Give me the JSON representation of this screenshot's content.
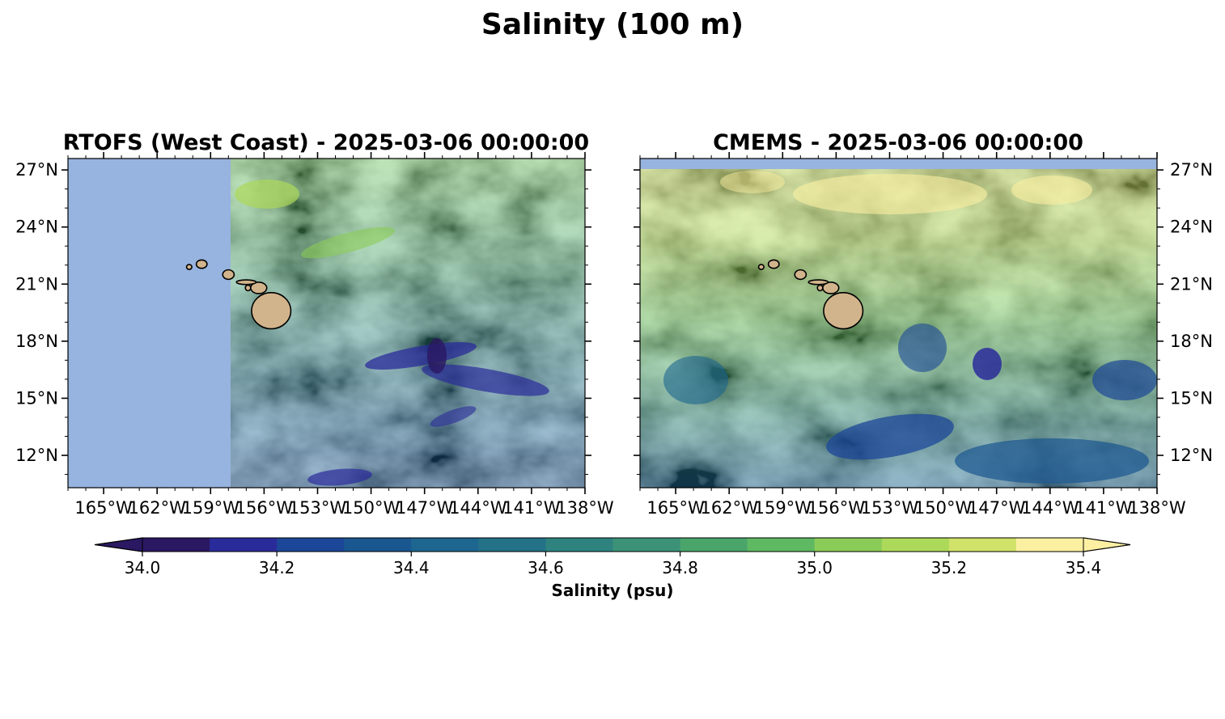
{
  "figure": {
    "title": "Salinity (100 m)"
  },
  "chart_data": [
    {
      "type": "heatmap",
      "title": "RTOFS (West Coast) - 2025-03-06 00:00:00",
      "x_ticks": [
        "165°W",
        "162°W",
        "159°W",
        "156°W",
        "153°W",
        "150°W",
        "147°W",
        "144°W",
        "141°W",
        "138°W"
      ],
      "y_ticks": [
        "27°N",
        "24°N",
        "21°N",
        "18°N",
        "15°N",
        "12°N"
      ],
      "y_tick_side": "left",
      "x_range": [
        -167,
        -138
      ],
      "y_range": [
        10.3,
        27.6
      ],
      "no_data_region_lon": [
        -167,
        -157.9
      ],
      "dominant_range_psu": [
        34.0,
        35.3
      ],
      "colors": {
        "no_data": "#97b3df",
        "land": "#d2b48c"
      }
    },
    {
      "type": "heatmap",
      "title": "CMEMS - 2025-03-06 00:00:00",
      "x_ticks": [
        "165°W",
        "162°W",
        "159°W",
        "156°W",
        "153°W",
        "150°W",
        "147°W",
        "144°W",
        "141°W",
        "138°W"
      ],
      "y_ticks": [
        "27°N",
        "24°N",
        "21°N",
        "18°N",
        "15°N",
        "12°N"
      ],
      "y_tick_side": "right",
      "x_range": [
        -167,
        -138
      ],
      "y_range": [
        10.3,
        27.6
      ],
      "no_data_region_lat": [
        27.0,
        27.6
      ],
      "dominant_range_psu": [
        34.1,
        35.4
      ],
      "colors": {
        "no_data": "#97b3df",
        "land": "#d2b48c"
      }
    }
  ],
  "colorbar": {
    "label": "Salinity (psu)",
    "min": 34.0,
    "max": 35.4,
    "step": 0.1,
    "extend": "both",
    "tick_values": [
      34.0,
      34.2,
      34.4,
      34.6,
      34.8,
      35.0,
      35.2,
      35.4
    ],
    "tick_labels": [
      "34.0",
      "34.2",
      "34.4",
      "34.6",
      "34.8",
      "35.0",
      "35.2",
      "35.4"
    ],
    "colors": [
      "#2a1862",
      "#2a2b9a",
      "#1c4799",
      "#1a5690",
      "#1d6690",
      "#237287",
      "#2e837f",
      "#3b9277",
      "#4aa56b",
      "#5fb962",
      "#8bcb57",
      "#add95a",
      "#d1e26a",
      "#fbf0a1"
    ],
    "under_color": "#2a1862",
    "over_color": "#fdf0a3"
  },
  "islands": [
    {
      "lon": -155.6,
      "lat": 19.6,
      "rx": 1.1,
      "ry": 0.95,
      "name": "hawaii"
    },
    {
      "lon": -156.3,
      "lat": 20.8,
      "rx": 0.45,
      "ry": 0.3,
      "name": "maui"
    },
    {
      "lon": -157.0,
      "lat": 21.1,
      "rx": 0.55,
      "ry": 0.12,
      "name": "molokai"
    },
    {
      "lon": -156.9,
      "lat": 20.8,
      "rx": 0.15,
      "ry": 0.15,
      "name": "lanai"
    },
    {
      "lon": -158.0,
      "lat": 21.5,
      "rx": 0.32,
      "ry": 0.25,
      "name": "oahu"
    },
    {
      "lon": -159.5,
      "lat": 22.05,
      "rx": 0.3,
      "ry": 0.22,
      "name": "kauai"
    },
    {
      "lon": -160.2,
      "lat": 21.9,
      "rx": 0.15,
      "ry": 0.13,
      "name": "niihau"
    }
  ]
}
